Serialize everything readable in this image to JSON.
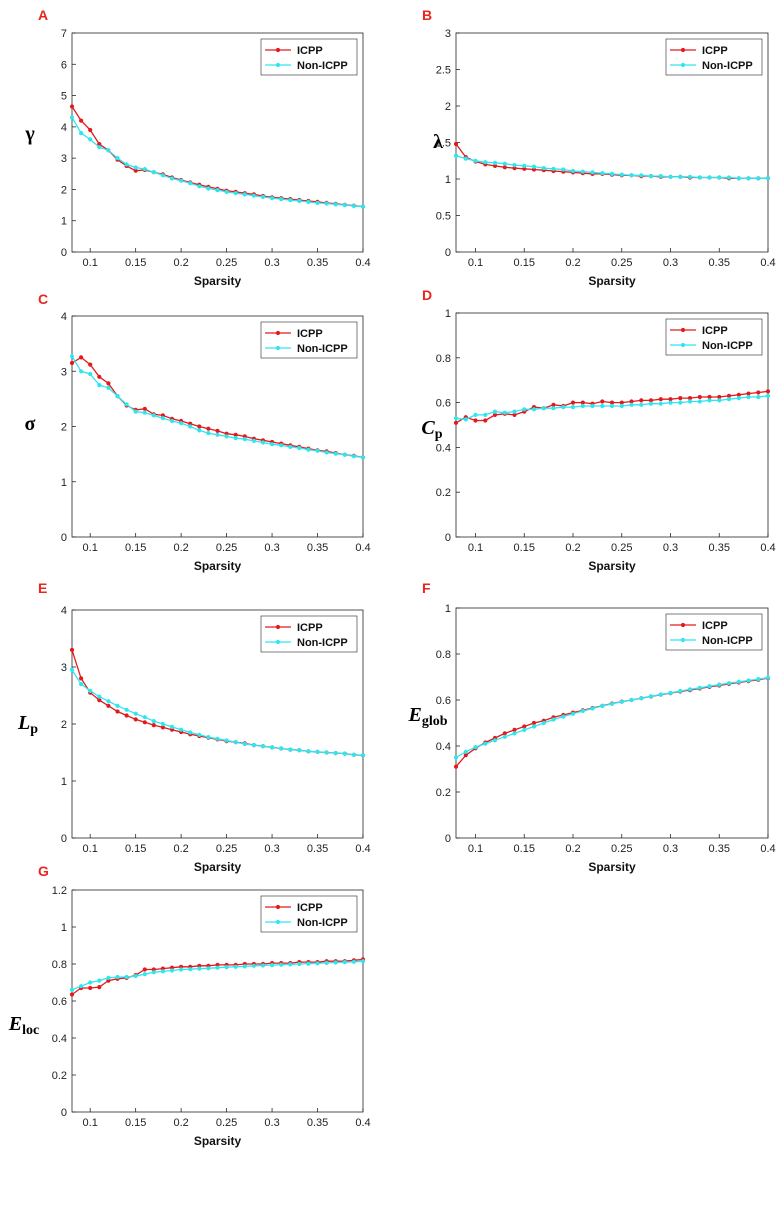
{
  "colors": {
    "icpp": "#e31a1c",
    "non_icpp": "#2fe6f0",
    "panel_label": "#e8261f"
  },
  "chart_data": [
    {
      "type": "line",
      "panel": "A",
      "ylabel": "γ",
      "ylabel_sub": "",
      "xlabel": "Sparsity",
      "xlim": [
        0.08,
        0.4
      ],
      "ylim": [
        0,
        7
      ],
      "yticks": [
        0,
        1,
        2,
        3,
        4,
        5,
        6,
        7
      ],
      "xticks": [
        0.1,
        0.15,
        0.2,
        0.25,
        0.3,
        0.35,
        0.4
      ],
      "legend": "top-right",
      "grid": false,
      "x": [
        0.08,
        0.09,
        0.1,
        0.11,
        0.12,
        0.13,
        0.14,
        0.15,
        0.16,
        0.17,
        0.18,
        0.19,
        0.2,
        0.21,
        0.22,
        0.23,
        0.24,
        0.25,
        0.26,
        0.27,
        0.28,
        0.29,
        0.3,
        0.31,
        0.32,
        0.33,
        0.34,
        0.35,
        0.36,
        0.37,
        0.38,
        0.39,
        0.4
      ],
      "series": [
        {
          "name": "ICPP",
          "values": [
            4.65,
            4.2,
            3.9,
            3.45,
            3.25,
            2.95,
            2.75,
            2.6,
            2.62,
            2.55,
            2.48,
            2.38,
            2.3,
            2.22,
            2.15,
            2.08,
            2.02,
            1.96,
            1.92,
            1.88,
            1.84,
            1.79,
            1.75,
            1.72,
            1.69,
            1.66,
            1.63,
            1.6,
            1.57,
            1.54,
            1.51,
            1.48,
            1.45
          ]
        },
        {
          "name": "Non-ICPP",
          "values": [
            4.3,
            3.8,
            3.6,
            3.35,
            3.25,
            3.0,
            2.8,
            2.7,
            2.65,
            2.55,
            2.45,
            2.35,
            2.28,
            2.2,
            2.1,
            2.03,
            1.98,
            1.92,
            1.88,
            1.84,
            1.8,
            1.76,
            1.72,
            1.69,
            1.66,
            1.63,
            1.6,
            1.57,
            1.55,
            1.52,
            1.5,
            1.47,
            1.45
          ]
        }
      ]
    },
    {
      "type": "line",
      "panel": "B",
      "ylabel": "λ",
      "ylabel_sub": "",
      "xlabel": "Sparsity",
      "xlim": [
        0.08,
        0.4
      ],
      "ylim": [
        0,
        3
      ],
      "yticks": [
        0,
        0.5,
        1,
        1.5,
        2,
        2.5,
        3
      ],
      "xticks": [
        0.1,
        0.15,
        0.2,
        0.25,
        0.3,
        0.35,
        0.4
      ],
      "legend": "top-right",
      "grid": false,
      "x": [
        0.08,
        0.09,
        0.1,
        0.11,
        0.12,
        0.13,
        0.14,
        0.15,
        0.16,
        0.17,
        0.18,
        0.19,
        0.2,
        0.21,
        0.22,
        0.23,
        0.24,
        0.25,
        0.26,
        0.27,
        0.28,
        0.29,
        0.3,
        0.31,
        0.32,
        0.33,
        0.34,
        0.35,
        0.36,
        0.37,
        0.38,
        0.39,
        0.4
      ],
      "series": [
        {
          "name": "ICPP",
          "values": [
            1.48,
            1.3,
            1.24,
            1.2,
            1.18,
            1.16,
            1.15,
            1.14,
            1.13,
            1.12,
            1.11,
            1.1,
            1.09,
            1.08,
            1.07,
            1.07,
            1.06,
            1.05,
            1.05,
            1.04,
            1.04,
            1.03,
            1.03,
            1.03,
            1.02,
            1.02,
            1.02,
            1.02,
            1.01,
            1.01,
            1.01,
            1.01,
            1.01
          ]
        },
        {
          "name": "Non-ICPP",
          "values": [
            1.32,
            1.28,
            1.25,
            1.23,
            1.22,
            1.21,
            1.19,
            1.18,
            1.17,
            1.15,
            1.14,
            1.13,
            1.11,
            1.1,
            1.09,
            1.08,
            1.07,
            1.06,
            1.05,
            1.05,
            1.04,
            1.04,
            1.03,
            1.03,
            1.03,
            1.02,
            1.02,
            1.02,
            1.02,
            1.01,
            1.01,
            1.01,
            1.01
          ]
        }
      ]
    },
    {
      "type": "line",
      "panel": "C",
      "ylabel": "σ",
      "ylabel_sub": "",
      "xlabel": "Sparsity",
      "xlim": [
        0.08,
        0.4
      ],
      "ylim": [
        0,
        4
      ],
      "yticks": [
        0,
        1,
        2,
        3,
        4
      ],
      "xticks": [
        0.1,
        0.15,
        0.2,
        0.25,
        0.3,
        0.35,
        0.4
      ],
      "legend": "top-right",
      "grid": false,
      "x": [
        0.08,
        0.09,
        0.1,
        0.11,
        0.12,
        0.13,
        0.14,
        0.15,
        0.16,
        0.17,
        0.18,
        0.19,
        0.2,
        0.21,
        0.22,
        0.23,
        0.24,
        0.25,
        0.26,
        0.27,
        0.28,
        0.29,
        0.3,
        0.31,
        0.32,
        0.33,
        0.34,
        0.35,
        0.36,
        0.37,
        0.38,
        0.39,
        0.4
      ],
      "series": [
        {
          "name": "ICPP",
          "values": [
            3.15,
            3.25,
            3.12,
            2.9,
            2.78,
            2.55,
            2.38,
            2.3,
            2.32,
            2.22,
            2.2,
            2.14,
            2.1,
            2.05,
            2.0,
            1.96,
            1.92,
            1.87,
            1.85,
            1.82,
            1.78,
            1.75,
            1.72,
            1.69,
            1.66,
            1.63,
            1.6,
            1.57,
            1.55,
            1.52,
            1.49,
            1.47,
            1.44
          ]
        },
        {
          "name": "Non-ICPP",
          "values": [
            3.27,
            3.0,
            2.95,
            2.75,
            2.7,
            2.55,
            2.4,
            2.27,
            2.25,
            2.2,
            2.15,
            2.1,
            2.06,
            2.0,
            1.93,
            1.88,
            1.85,
            1.82,
            1.79,
            1.77,
            1.74,
            1.71,
            1.68,
            1.66,
            1.63,
            1.61,
            1.58,
            1.56,
            1.53,
            1.51,
            1.49,
            1.46,
            1.44
          ]
        }
      ]
    },
    {
      "type": "line",
      "panel": "D",
      "ylabel": "C",
      "ylabel_sub": "p",
      "xlabel": "Sparsity",
      "xlim": [
        0.08,
        0.4
      ],
      "ylim": [
        0,
        1
      ],
      "yticks": [
        0,
        0.2,
        0.4,
        0.6,
        0.8,
        1
      ],
      "xticks": [
        0.1,
        0.15,
        0.2,
        0.25,
        0.3,
        0.35,
        0.4
      ],
      "legend": "top-right",
      "grid": false,
      "x": [
        0.08,
        0.09,
        0.1,
        0.11,
        0.12,
        0.13,
        0.14,
        0.15,
        0.16,
        0.17,
        0.18,
        0.19,
        0.2,
        0.21,
        0.22,
        0.23,
        0.24,
        0.25,
        0.26,
        0.27,
        0.28,
        0.29,
        0.3,
        0.31,
        0.32,
        0.33,
        0.34,
        0.35,
        0.36,
        0.37,
        0.38,
        0.39,
        0.4
      ],
      "series": [
        {
          "name": "ICPP",
          "values": [
            0.51,
            0.535,
            0.52,
            0.52,
            0.545,
            0.55,
            0.545,
            0.56,
            0.58,
            0.575,
            0.59,
            0.585,
            0.6,
            0.6,
            0.595,
            0.605,
            0.6,
            0.6,
            0.605,
            0.61,
            0.61,
            0.615,
            0.615,
            0.62,
            0.62,
            0.625,
            0.625,
            0.625,
            0.63,
            0.635,
            0.64,
            0.645,
            0.65
          ]
        },
        {
          "name": "Non-ICPP",
          "values": [
            0.53,
            0.525,
            0.545,
            0.545,
            0.56,
            0.555,
            0.56,
            0.57,
            0.57,
            0.575,
            0.575,
            0.58,
            0.58,
            0.585,
            0.585,
            0.585,
            0.585,
            0.585,
            0.59,
            0.59,
            0.595,
            0.595,
            0.6,
            0.6,
            0.605,
            0.605,
            0.61,
            0.61,
            0.615,
            0.62,
            0.625,
            0.625,
            0.63
          ]
        }
      ]
    },
    {
      "type": "line",
      "panel": "E",
      "ylabel": "L",
      "ylabel_sub": "p",
      "xlabel": "Sparsity",
      "xlim": [
        0.08,
        0.4
      ],
      "ylim": [
        0,
        4
      ],
      "yticks": [
        0,
        1,
        2,
        3,
        4
      ],
      "xticks": [
        0.1,
        0.15,
        0.2,
        0.25,
        0.3,
        0.35,
        0.4
      ],
      "legend": "top-right",
      "grid": false,
      "x": [
        0.08,
        0.09,
        0.1,
        0.11,
        0.12,
        0.13,
        0.14,
        0.15,
        0.16,
        0.17,
        0.18,
        0.19,
        0.2,
        0.21,
        0.22,
        0.23,
        0.24,
        0.25,
        0.26,
        0.27,
        0.28,
        0.29,
        0.3,
        0.31,
        0.32,
        0.33,
        0.34,
        0.35,
        0.36,
        0.37,
        0.38,
        0.39,
        0.4
      ],
      "series": [
        {
          "name": "ICPP",
          "values": [
            3.3,
            2.8,
            2.55,
            2.42,
            2.32,
            2.22,
            2.15,
            2.08,
            2.03,
            1.98,
            1.94,
            1.9,
            1.86,
            1.82,
            1.79,
            1.76,
            1.73,
            1.7,
            1.68,
            1.66,
            1.63,
            1.61,
            1.59,
            1.57,
            1.55,
            1.54,
            1.52,
            1.51,
            1.5,
            1.49,
            1.48,
            1.46,
            1.45
          ]
        },
        {
          "name": "Non-ICPP",
          "values": [
            2.95,
            2.7,
            2.58,
            2.48,
            2.4,
            2.32,
            2.25,
            2.18,
            2.12,
            2.05,
            2.0,
            1.95,
            1.9,
            1.85,
            1.81,
            1.77,
            1.74,
            1.71,
            1.68,
            1.65,
            1.63,
            1.61,
            1.59,
            1.57,
            1.55,
            1.54,
            1.52,
            1.51,
            1.5,
            1.49,
            1.48,
            1.46,
            1.45
          ]
        }
      ]
    },
    {
      "type": "line",
      "panel": "F",
      "ylabel": "E",
      "ylabel_sub": "glob",
      "xlabel": "Sparsity",
      "xlim": [
        0.08,
        0.4
      ],
      "ylim": [
        0,
        1
      ],
      "yticks": [
        0,
        0.2,
        0.4,
        0.6,
        0.8,
        1
      ],
      "xticks": [
        0.1,
        0.15,
        0.2,
        0.25,
        0.3,
        0.35,
        0.4
      ],
      "legend": "top-right",
      "grid": false,
      "x": [
        0.08,
        0.09,
        0.1,
        0.11,
        0.12,
        0.13,
        0.14,
        0.15,
        0.16,
        0.17,
        0.18,
        0.19,
        0.2,
        0.21,
        0.22,
        0.23,
        0.24,
        0.25,
        0.26,
        0.27,
        0.28,
        0.29,
        0.3,
        0.31,
        0.32,
        0.33,
        0.34,
        0.35,
        0.36,
        0.37,
        0.38,
        0.39,
        0.4
      ],
      "series": [
        {
          "name": "ICPP",
          "values": [
            0.31,
            0.36,
            0.39,
            0.415,
            0.435,
            0.455,
            0.47,
            0.485,
            0.5,
            0.51,
            0.525,
            0.535,
            0.545,
            0.555,
            0.565,
            0.575,
            0.585,
            0.593,
            0.6,
            0.608,
            0.615,
            0.623,
            0.63,
            0.637,
            0.643,
            0.65,
            0.657,
            0.663,
            0.67,
            0.676,
            0.682,
            0.688,
            0.695
          ]
        },
        {
          "name": "Non-ICPP",
          "values": [
            0.35,
            0.375,
            0.395,
            0.41,
            0.425,
            0.44,
            0.455,
            0.47,
            0.485,
            0.5,
            0.515,
            0.528,
            0.54,
            0.552,
            0.563,
            0.574,
            0.583,
            0.592,
            0.6,
            0.608,
            0.616,
            0.624,
            0.631,
            0.639,
            0.646,
            0.653,
            0.66,
            0.667,
            0.673,
            0.679,
            0.685,
            0.691,
            0.697
          ]
        }
      ]
    },
    {
      "type": "line",
      "panel": "G",
      "ylabel": "E",
      "ylabel_sub": "loc",
      "xlabel": "Sparsity",
      "xlim": [
        0.08,
        0.4
      ],
      "ylim": [
        0,
        1.2
      ],
      "yticks": [
        0,
        0.2,
        0.4,
        0.6,
        0.8,
        1,
        1.2
      ],
      "xticks": [
        0.1,
        0.15,
        0.2,
        0.25,
        0.3,
        0.35,
        0.4
      ],
      "legend": "top-right",
      "grid": false,
      "x": [
        0.08,
        0.09,
        0.1,
        0.11,
        0.12,
        0.13,
        0.14,
        0.15,
        0.16,
        0.17,
        0.18,
        0.19,
        0.2,
        0.21,
        0.22,
        0.23,
        0.24,
        0.25,
        0.26,
        0.27,
        0.28,
        0.29,
        0.3,
        0.31,
        0.32,
        0.33,
        0.34,
        0.35,
        0.36,
        0.37,
        0.38,
        0.39,
        0.4
      ],
      "series": [
        {
          "name": "ICPP",
          "values": [
            0.635,
            0.67,
            0.67,
            0.675,
            0.71,
            0.72,
            0.725,
            0.74,
            0.77,
            0.77,
            0.775,
            0.78,
            0.785,
            0.785,
            0.79,
            0.79,
            0.795,
            0.795,
            0.795,
            0.8,
            0.8,
            0.8,
            0.805,
            0.805,
            0.805,
            0.81,
            0.81,
            0.81,
            0.815,
            0.815,
            0.815,
            0.82,
            0.825
          ]
        },
        {
          "name": "Non-ICPP",
          "values": [
            0.66,
            0.68,
            0.7,
            0.71,
            0.725,
            0.73,
            0.73,
            0.735,
            0.745,
            0.755,
            0.76,
            0.765,
            0.77,
            0.772,
            0.775,
            0.777,
            0.78,
            0.783,
            0.785,
            0.787,
            0.79,
            0.792,
            0.794,
            0.796,
            0.798,
            0.8,
            0.802,
            0.804,
            0.806,
            0.808,
            0.81,
            0.812,
            0.815
          ]
        }
      ]
    }
  ]
}
